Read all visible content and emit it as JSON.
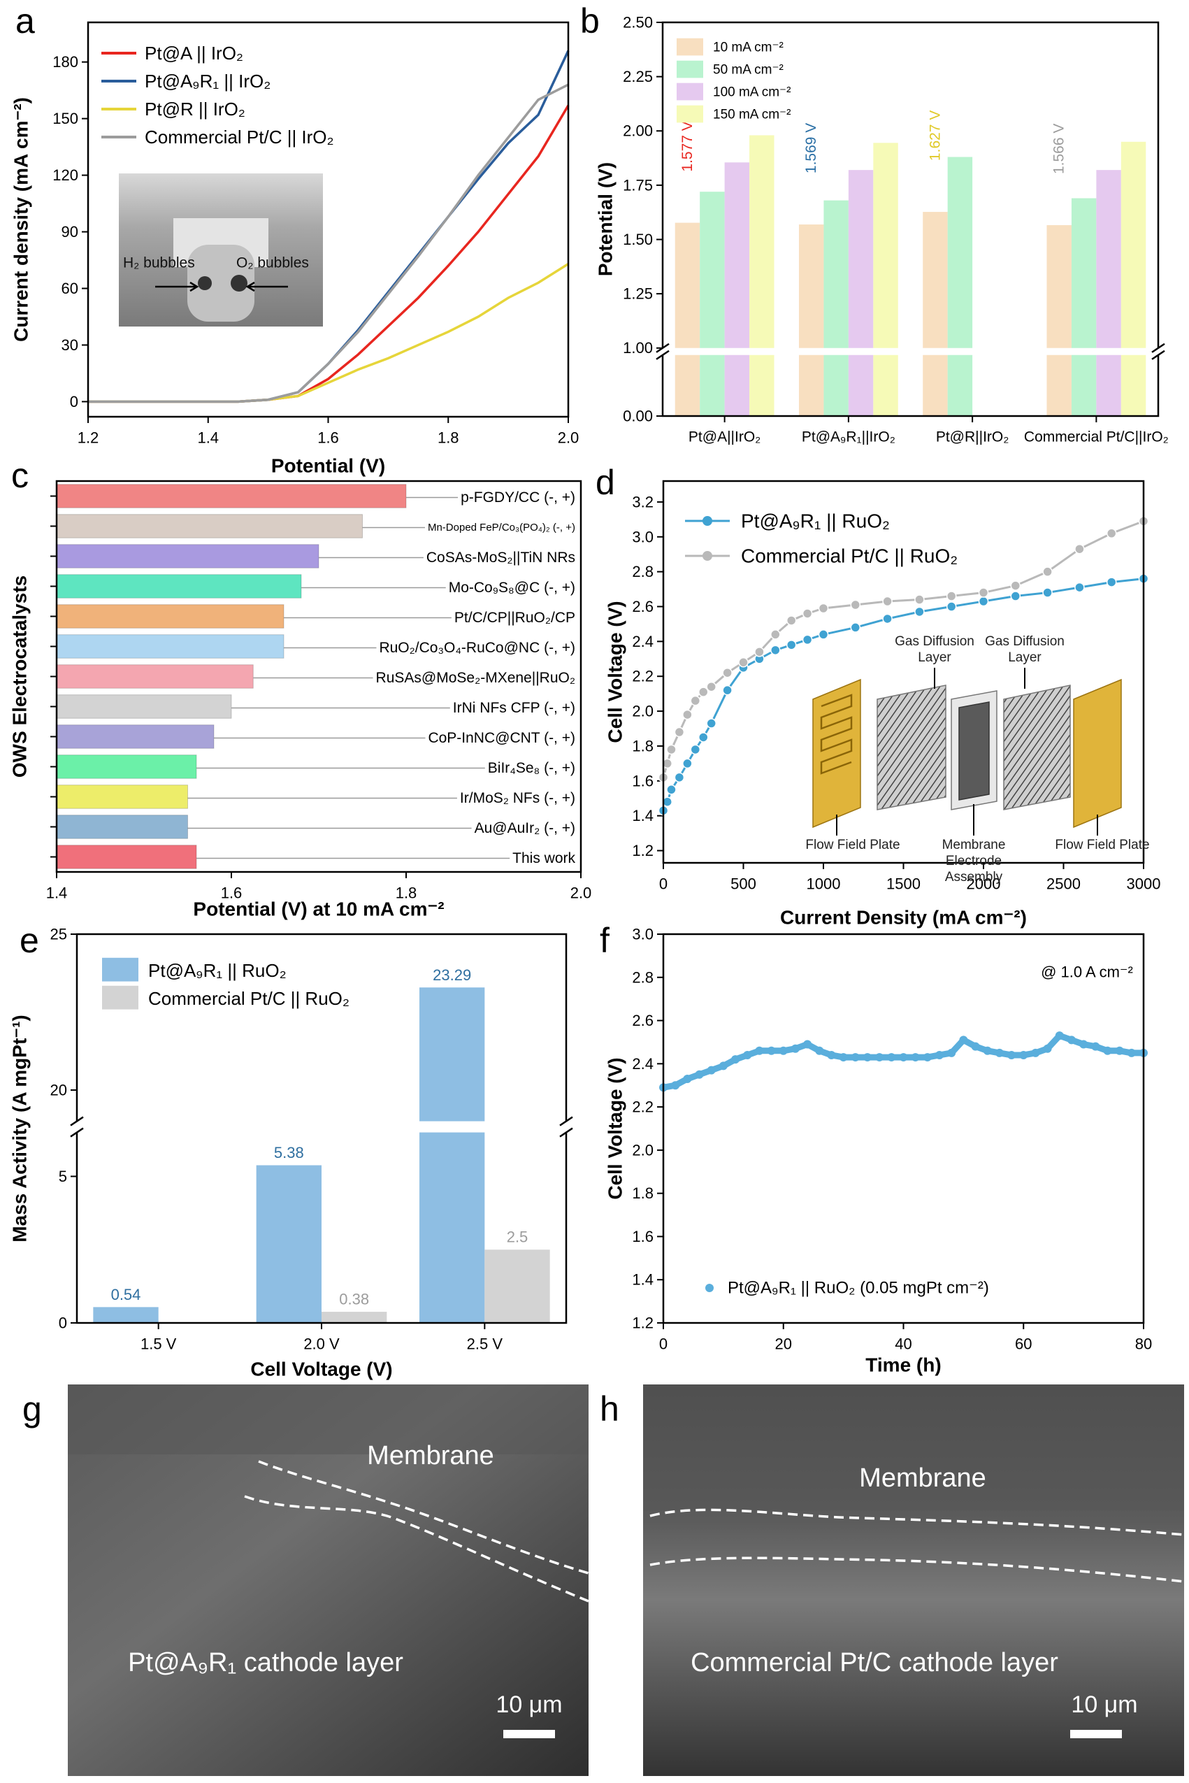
{
  "chart_data": [
    {
      "type": "line",
      "panel_label": "a",
      "xlabel": "Potential (V)",
      "ylabel": "Current density (mA cm⁻²)",
      "x": [
        1.2,
        1.25,
        1.3,
        1.35,
        1.4,
        1.45,
        1.5,
        1.55,
        1.6,
        1.65,
        1.7,
        1.75,
        1.8,
        1.85,
        1.9,
        1.95,
        2.0
      ],
      "series": [
        {
          "name": "Pt@A || IrO₂",
          "color": "#e8261f",
          "values": [
            0,
            0,
            0,
            0,
            0,
            0,
            1,
            3,
            12,
            25,
            40,
            55,
            72,
            90,
            110,
            130,
            157
          ]
        },
        {
          "name": "Pt@A₉R₁ || IrO₂",
          "color": "#2a5d9b",
          "values": [
            0,
            0,
            0,
            0,
            0,
            0,
            1,
            5,
            20,
            38,
            58,
            78,
            98,
            118,
            137,
            152,
            186
          ]
        },
        {
          "name": "Pt@R || IrO₂",
          "color": "#e6d53a",
          "values": [
            0,
            0,
            0,
            0,
            0,
            0,
            1,
            3,
            10,
            17,
            23,
            30,
            37,
            45,
            55,
            63,
            73
          ]
        },
        {
          "name": "Commercial Pt/C || IrO₂",
          "color": "#9c9c9c",
          "values": [
            0,
            0,
            0,
            0,
            0,
            0,
            1,
            5,
            20,
            37,
            57,
            77,
            98,
            120,
            140,
            160,
            168
          ]
        }
      ],
      "xlim": [
        1.2,
        2.0
      ],
      "ylim": [
        -8,
        201
      ],
      "xticks": [
        1.2,
        1.4,
        1.6,
        1.8,
        {
          "value": 2.0,
          "label": "2.0"
        }
      ],
      "yticks": [
        0,
        30,
        60,
        90,
        120,
        150,
        180
      ],
      "legend": "upper left",
      "annotations": [
        "H₂ bubbles",
        "O₂ bubbles"
      ]
    },
    {
      "type": "bar",
      "panel_label": "b",
      "ylabel": "Potential (V)",
      "categories": [
        "Pt@A||IrO₂",
        "Pt@A₉R₁||IrO₂",
        "Pt@R||IrO₂",
        "Commercial Pt/C||IrO₂"
      ],
      "series": [
        {
          "name": "10 mA cm⁻²",
          "color": "#f8dfc0",
          "values": [
            1.577,
            1.569,
            1.627,
            1.566
          ],
          "value_labels": [
            "1.577 V",
            "1.569 V",
            "1.627 V",
            "1.566 V"
          ],
          "value_label_colors": [
            "#e8261f",
            "#2a6fa5",
            "#e0c928",
            "#9c9c9c"
          ]
        },
        {
          "name": "50 mA cm⁻²",
          "color": "#b9f3cf",
          "values": [
            1.72,
            1.68,
            1.88,
            1.69
          ]
        },
        {
          "name": "100 mA cm⁻²",
          "color": "#e5c9ef",
          "values": [
            1.855,
            1.82,
            null,
            1.82
          ]
        },
        {
          "name": "150 mA cm⁻²",
          "color": "#f6fab7",
          "values": [
            1.98,
            1.945,
            null,
            1.95
          ]
        }
      ],
      "ylim": [
        0,
        2.5
      ],
      "ybreak": [
        1,
        1
      ],
      "yticks": [
        {
          "value": 0,
          "label": "0.00"
        },
        {
          "value": 1,
          "label": "1.00"
        },
        1.25,
        {
          "value": 1.5,
          "label": "1.50"
        },
        1.75,
        {
          "value": 2,
          "label": "2.00"
        },
        2.25,
        {
          "value": 2.5,
          "label": "2.50"
        }
      ],
      "legend": "upper left"
    },
    {
      "type": "barh",
      "panel_label": "c",
      "xlabel": "Potential (V) at 10 mA cm⁻²",
      "ylabel": "OWS Electrocatalysts",
      "categories": [
        "p-FGDY/CC (-, +)",
        "Mn-Doped FeP/Co₃(PO₄)₂ (-, +)",
        "CoSAs-MoS₂||TiN NRs",
        "Mo-Co₉S₈@C (-, +)",
        "Pt/C/CP||RuO₂/CP",
        "RuO₂/Co₃O₄-RuCo@NC (-, +)",
        "RuSAs@MoSe₂-MXene||RuO₂",
        "IrNi NFs CFP (-, +)",
        "CoP-InNC@CNT (-, +)",
        "BiIr₄Se₈ (-, +)",
        "Ir/MoS₂ NFs (-, +)",
        "Au@AuIr₂ (-, +)",
        "This work"
      ],
      "values": [
        1.8,
        1.75,
        1.7,
        1.68,
        1.66,
        1.66,
        1.625,
        1.6,
        1.58,
        1.56,
        1.55,
        1.55,
        1.56
      ],
      "colors": [
        "#f08585",
        "#d9cdc5",
        "#a99ae0",
        "#5ee5c0",
        "#f0b27a",
        "#aed6f1",
        "#f4a6b0",
        "#d3d3d3",
        "#a8a3d8",
        "#6bf0a8",
        "#eded6a",
        "#8fb5d3",
        "#f0707b"
      ],
      "xlim": [
        1.4,
        2.0
      ],
      "xticks": [
        1.4,
        1.6,
        1.8,
        {
          "value": 2.0,
          "label": "2.0"
        }
      ]
    },
    {
      "type": "line",
      "markers": true,
      "panel_label": "d",
      "xlabel": "Current Density (mA cm⁻²)",
      "ylabel": "Cell Voltage (V)",
      "x": [
        0,
        25,
        50,
        100,
        150,
        200,
        250,
        300,
        400,
        500,
        600,
        700,
        800,
        900,
        1000,
        1200,
        1400,
        1600,
        1800,
        2000,
        2200,
        2400,
        2600,
        2800,
        3000
      ],
      "series": [
        {
          "name": "Pt@A₉R₁ || RuO₂",
          "color": "#3fa2d2",
          "values": [
            1.43,
            1.48,
            1.55,
            1.62,
            1.7,
            1.78,
            1.85,
            1.93,
            2.12,
            2.25,
            2.3,
            2.35,
            2.38,
            2.41,
            2.44,
            2.48,
            2.53,
            2.57,
            2.6,
            2.63,
            2.66,
            2.68,
            2.71,
            2.74,
            2.76
          ]
        },
        {
          "name": "Commercial Pt/C || RuO₂",
          "color": "#b9b9b9",
          "values": [
            1.62,
            1.7,
            1.78,
            1.88,
            1.98,
            2.06,
            2.11,
            2.14,
            2.22,
            2.28,
            2.34,
            2.44,
            2.52,
            2.56,
            2.59,
            2.61,
            2.63,
            2.64,
            2.66,
            2.68,
            2.72,
            2.8,
            2.93,
            3.02,
            3.09
          ]
        }
      ],
      "xlim": [
        0,
        3000
      ],
      "ylim": [
        1.13,
        3.32
      ],
      "xticks": [
        0,
        500,
        1000,
        1500,
        2000,
        2500,
        3000
      ],
      "yticks": [
        1.2,
        1.4,
        1.6,
        1.8,
        {
          "value": 2.0,
          "label": "2.0"
        },
        2.2,
        2.4,
        2.6,
        2.8,
        {
          "value": 3.0,
          "label": "3.0"
        },
        3.2
      ],
      "legend": "upper left",
      "annotations": [
        "Gas Diffusion Layer",
        "Gas Diffusion Layer",
        "Flow Field Plate",
        "Membrane Electrode Assembly",
        "Flow Field Plate"
      ]
    },
    {
      "type": "bar",
      "panel_label": "e",
      "xlabel": "Cell Voltage (V)",
      "ylabel": "Mass Activity (A mgPt⁻¹)",
      "categories": [
        "1.5 V",
        "2.0 V",
        "2.5 V"
      ],
      "series": [
        {
          "name": "Pt@A₉R₁ || RuO₂",
          "color": "#8ebee3",
          "label_color": "#2f6fa0",
          "values": [
            0.54,
            5.38,
            23.29
          ]
        },
        {
          "name": "Commercial Pt/C || RuO₂",
          "color": "#d3d3d3",
          "label_color": "#9c9c9c",
          "values": [
            null,
            0.38,
            2.5
          ]
        }
      ],
      "data_labels": true,
      "ylim": [
        0,
        25
      ],
      "ybreak": [
        6.5,
        19
      ],
      "yticks": [
        0,
        5,
        20,
        25
      ],
      "legend": "upper left"
    },
    {
      "type": "scatter",
      "panel_label": "f",
      "xlabel": "Time (h)",
      "ylabel": "Cell Voltage (V)",
      "x": [
        0,
        2,
        4,
        6,
        8,
        10,
        12,
        14,
        16,
        18,
        20,
        22,
        24,
        26,
        28,
        30,
        32,
        34,
        36,
        38,
        40,
        42,
        44,
        46,
        48,
        50,
        52,
        54,
        56,
        58,
        60,
        62,
        64,
        66,
        68,
        70,
        72,
        74,
        76,
        78,
        80
      ],
      "series": [
        {
          "name": "Pt@A₉R₁ || RuO₂  (0.05 mgPt cm⁻²)",
          "color": "#5aaedc",
          "values": [
            2.29,
            2.3,
            2.33,
            2.35,
            2.37,
            2.39,
            2.42,
            2.44,
            2.46,
            2.46,
            2.46,
            2.47,
            2.49,
            2.46,
            2.44,
            2.43,
            2.43,
            2.43,
            2.43,
            2.43,
            2.43,
            2.43,
            2.43,
            2.44,
            2.45,
            2.51,
            2.48,
            2.46,
            2.45,
            2.44,
            2.44,
            2.45,
            2.47,
            2.53,
            2.51,
            2.49,
            2.48,
            2.46,
            2.46,
            2.45,
            2.45
          ]
        }
      ],
      "xlim": [
        0,
        80
      ],
      "ylim": [
        1.2,
        3.0
      ],
      "xticks": [
        0,
        20,
        40,
        60,
        80
      ],
      "yticks": [
        1.2,
        1.4,
        1.6,
        1.8,
        {
          "value": 2.0,
          "label": "2.0"
        },
        2.2,
        2.4,
        2.6,
        2.8,
        {
          "value": 3.0,
          "label": "3.0"
        }
      ],
      "legend": "lower left",
      "annotations": [
        "@ 1.0 A cm⁻²"
      ]
    }
  ],
  "images": [
    {
      "panel_label": "g",
      "labels": [
        "Membrane",
        "Pt@A₉R₁ cathode layer"
      ],
      "scale_bar": "10 μm"
    },
    {
      "panel_label": "h",
      "labels": [
        "Membrane",
        "Commercial Pt/C cathode layer"
      ],
      "scale_bar": "10 μm"
    }
  ]
}
